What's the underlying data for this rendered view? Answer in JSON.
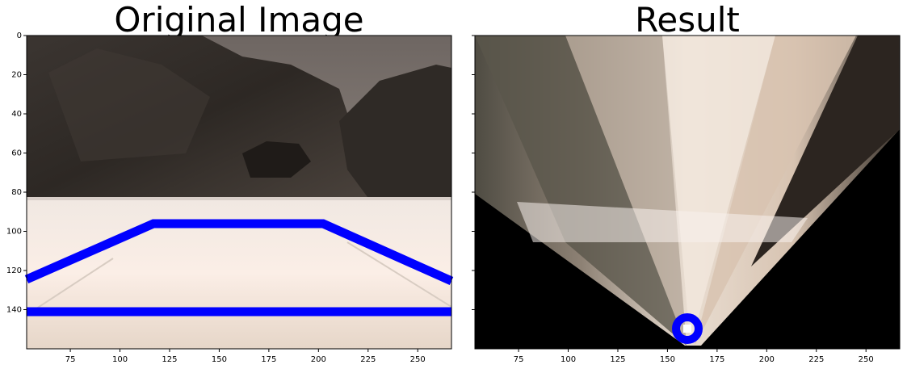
{
  "figure": {
    "panels": [
      {
        "title": "Original Image"
      },
      {
        "title": "Result"
      }
    ]
  },
  "chart_data": [
    {
      "type": "image",
      "title": "Original Image",
      "xlim": [
        53,
        267
      ],
      "ylim": [
        160,
        0
      ],
      "xticks": [
        75,
        100,
        125,
        150,
        175,
        200,
        225,
        250
      ],
      "yticks": [
        0,
        20,
        40,
        60,
        80,
        100,
        120,
        140
      ],
      "overlay_lines": [
        {
          "color": "#0000ff",
          "points": [
            [
              53,
              124
            ],
            [
              118,
              96
            ],
            [
              200,
              96
            ],
            [
              267,
              125
            ]
          ]
        },
        {
          "color": "#0000ff",
          "points": [
            [
              53,
              140
            ],
            [
              267,
              140
            ]
          ]
        }
      ]
    },
    {
      "type": "image",
      "title": "Result",
      "xlim": [
        53,
        267
      ],
      "ylim": [
        160,
        0
      ],
      "xticks": [
        75,
        100,
        125,
        150,
        175,
        200,
        225,
        250
      ],
      "overlay_marker": {
        "color": "#0000ff",
        "center": [
          160,
          150
        ]
      }
    }
  ],
  "colors": {
    "blue": "#0000ff",
    "black": "#000000"
  }
}
